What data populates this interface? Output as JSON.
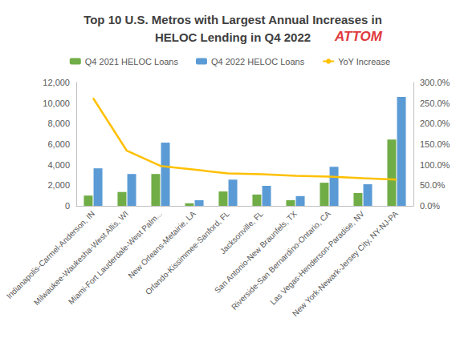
{
  "chart_data": {
    "type": "bar",
    "title": "Top 10 U.S. Metros with Largest Annual Increases in\nHELOC Lending in Q4 2022",
    "logo": "ATTOM",
    "categories": [
      "Indianapolis-Carmel-Anderson, IN",
      "Milwaukee-Waukesha-West Allis, WI",
      "Miami-Fort Lauderdale-West Palm...",
      "New Orleans-Metairie, LA",
      "Orlando-Kissimmee-Sanford, FL",
      "Jacksonville, FL",
      "San Antonio-New Braunfels, TX",
      "Riverside-San Bernardino-Ontario, CA",
      "Las Vegas-Henderson-Paradise, NV",
      "New York-Newark-Jersey City, NY-NJ-PA"
    ],
    "series": [
      {
        "name": "Q4 2021 HELOC Loans",
        "type": "bar",
        "color": "#70ad47",
        "values": [
          1000,
          1350,
          3100,
          250,
          1400,
          1100,
          550,
          2250,
          1250,
          6450
        ]
      },
      {
        "name": "Q4 2022 HELOC Loans",
        "type": "bar",
        "color": "#5b9bd5",
        "values": [
          3650,
          3100,
          6150,
          550,
          2550,
          1950,
          950,
          3800,
          2100,
          10600
        ]
      },
      {
        "name": "YoY Increase",
        "type": "line",
        "axis": "y2",
        "color": "#ffc000",
        "marker": "none",
        "values": [
          262,
          134,
          97,
          88,
          79,
          77,
          73,
          71,
          67,
          64
        ]
      }
    ],
    "ylim": [
      0,
      12000
    ],
    "yticks": [
      0,
      {
        "value": 2000,
        "label": "2,000"
      },
      {
        "value": 4000,
        "label": "4,000"
      },
      {
        "value": 6000,
        "label": "6,000"
      },
      {
        "value": 8000,
        "label": "8,000"
      },
      {
        "value": 10000,
        "label": "10,000"
      },
      {
        "value": 12000,
        "label": "12,000"
      }
    ],
    "y2lim": [
      0,
      300
    ],
    "y2ticks": [
      {
        "value": 0,
        "label": "0.0%"
      },
      {
        "value": 50,
        "label": "50.0%"
      },
      {
        "value": 100,
        "label": "100.0%"
      },
      {
        "value": 150,
        "label": "150.0%"
      },
      {
        "value": 200,
        "label": "200.0%"
      },
      {
        "value": 250,
        "label": "250.0%"
      },
      {
        "value": 300,
        "label": "300.0%"
      }
    ],
    "grid": false,
    "legend": "top"
  }
}
